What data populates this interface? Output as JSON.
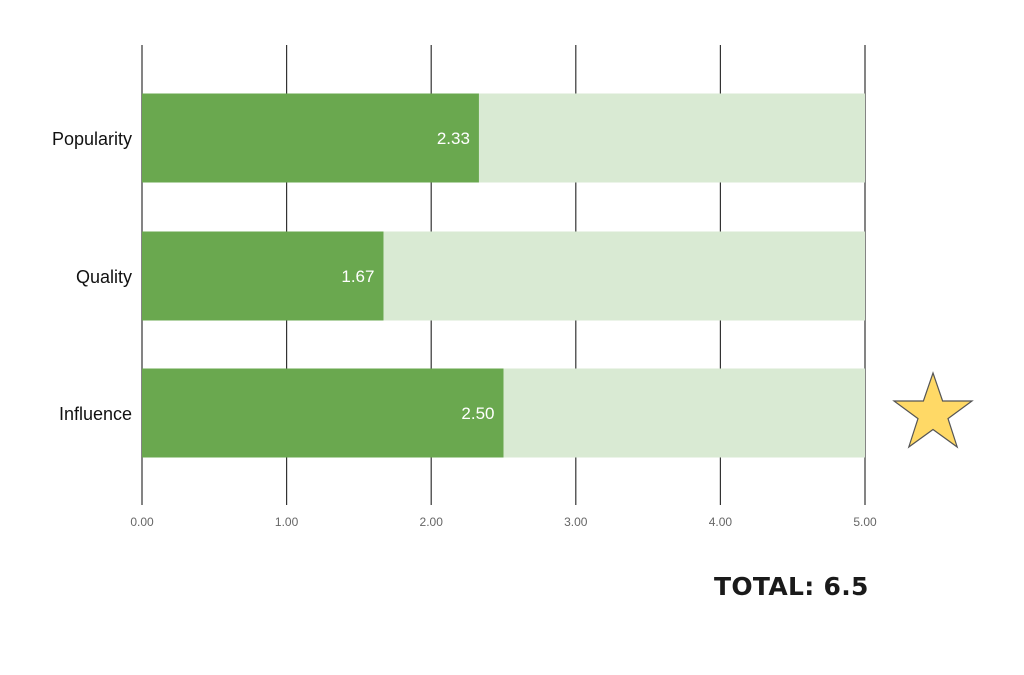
{
  "chart_data": {
    "type": "bar",
    "orientation": "horizontal",
    "categories": [
      "Popularity",
      "Quality",
      "Influence"
    ],
    "values": [
      2.33,
      1.67,
      2.5
    ],
    "value_labels": [
      "2.33",
      "1.67",
      "2.50"
    ],
    "max": 5.0,
    "xlim": [
      0,
      5
    ],
    "xticks": [
      0,
      1,
      2,
      3,
      4,
      5
    ],
    "xtick_labels": [
      "0.00",
      "1.00",
      "2.00",
      "3.00",
      "4.00",
      "5.00"
    ],
    "grid": "vertical",
    "title": "",
    "xlabel": "",
    "ylabel": "",
    "colors": {
      "bar": "#6aa84f",
      "track": "#d9ead3",
      "grid": "#333333"
    }
  },
  "total": {
    "text": "TOTAL: 6.5"
  },
  "star": {
    "icon": "star-icon",
    "fill": "#ffd966",
    "stroke": "#555555"
  }
}
